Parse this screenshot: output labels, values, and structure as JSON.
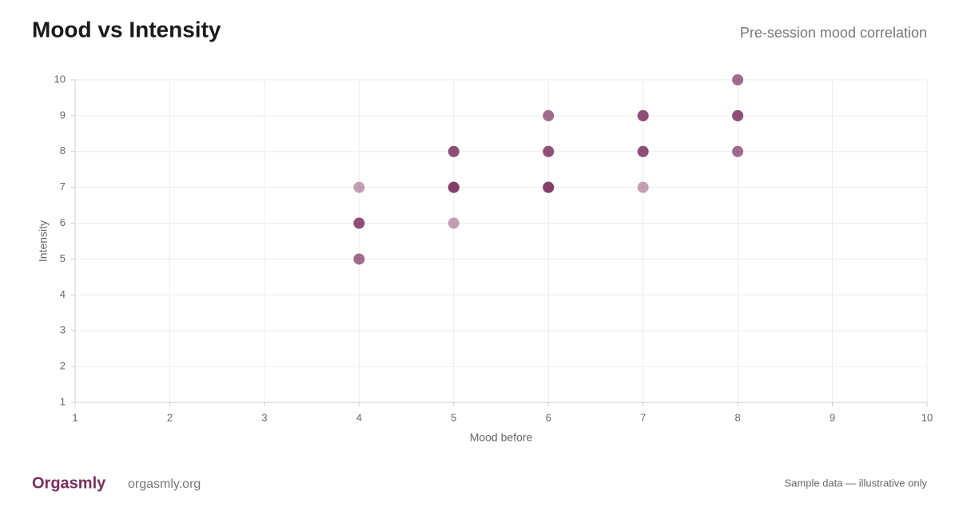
{
  "header": {
    "title": "Mood vs Intensity",
    "subtitle": "Pre-session mood correlation"
  },
  "chart_data": {
    "type": "scatter",
    "xlabel": "Mood before",
    "ylabel": "Intensity",
    "x": [
      4,
      4,
      4,
      4,
      4,
      4,
      5,
      5,
      5,
      5,
      5,
      5,
      5,
      5,
      6,
      6,
      6,
      6,
      6,
      6,
      6,
      6,
      6,
      7,
      7,
      7,
      7,
      7,
      7,
      7,
      8,
      8,
      8,
      8,
      8,
      8,
      8
    ],
    "values": [
      7,
      6,
      6,
      6,
      5,
      5,
      8,
      8,
      8,
      7,
      7,
      7,
      7,
      6,
      9,
      9,
      8,
      8,
      8,
      7,
      7,
      7,
      7,
      9,
      9,
      9,
      8,
      8,
      8,
      7,
      10,
      10,
      9,
      9,
      9,
      8,
      8
    ],
    "color": "#7b2d5e",
    "opacity": 0.45,
    "xlim": [
      1,
      10
    ],
    "ylim": [
      1,
      10
    ],
    "xticks": [
      1,
      2,
      3,
      4,
      5,
      6,
      7,
      8,
      9,
      10
    ],
    "yticks": [
      1,
      2,
      3,
      4,
      5,
      6,
      7,
      8,
      9,
      10
    ],
    "grid": true
  },
  "footer": {
    "brand": "Orgasmly",
    "url": "orgasmly.org",
    "note": "Sample data — illustrative only"
  }
}
